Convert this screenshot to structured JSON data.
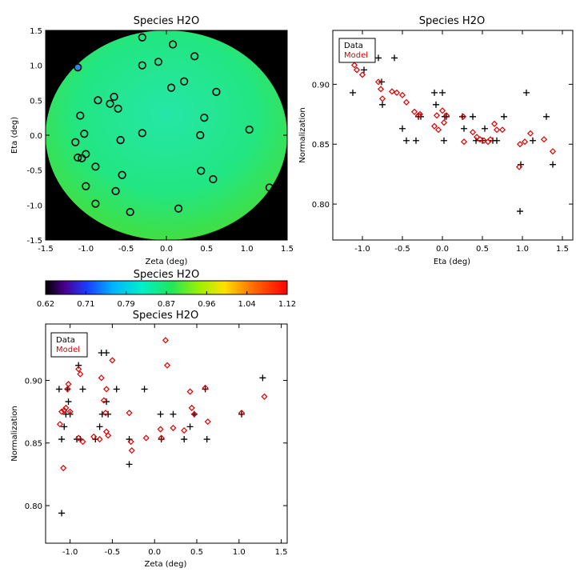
{
  "chart_data": [
    {
      "id": "map",
      "type": "heatmap",
      "title": "Species H2O",
      "xlabel": "Zeta (deg)",
      "ylabel": "Eta (deg)",
      "xlim": [
        -1.5,
        1.5
      ],
      "ylim": [
        -1.5,
        1.5
      ],
      "xticks": [
        "-1.5",
        "-1.0",
        "-0.5",
        "0.0",
        "0.5",
        "1.0",
        "1.5"
      ],
      "yticks": [
        "-1.5",
        "-1.0",
        "-0.5",
        "0.0",
        "0.5",
        "1.0",
        "1.5"
      ],
      "background_color": "#000000",
      "points": [
        {
          "x": -0.3,
          "y": 1.4
        },
        {
          "x": 0.08,
          "y": 1.3
        },
        {
          "x": -0.1,
          "y": 1.05
        },
        {
          "x": -0.3,
          "y": 1.0
        },
        {
          "x": 0.35,
          "y": 1.13
        },
        {
          "x": -1.1,
          "y": 0.97
        },
        {
          "x": 0.06,
          "y": 0.68
        },
        {
          "x": 0.22,
          "y": 0.77
        },
        {
          "x": 0.62,
          "y": 0.62
        },
        {
          "x": -0.65,
          "y": 0.55
        },
        {
          "x": -0.7,
          "y": 0.45
        },
        {
          "x": -0.85,
          "y": 0.5
        },
        {
          "x": -0.6,
          "y": 0.38
        },
        {
          "x": -1.07,
          "y": 0.28
        },
        {
          "x": 0.47,
          "y": 0.25
        },
        {
          "x": -1.02,
          "y": 0.02
        },
        {
          "x": -0.3,
          "y": 0.03
        },
        {
          "x": 0.42,
          "y": 0.0
        },
        {
          "x": 1.03,
          "y": 0.08
        },
        {
          "x": -1.13,
          "y": -0.1
        },
        {
          "x": -0.57,
          "y": -0.07
        },
        {
          "x": -1.0,
          "y": -0.27
        },
        {
          "x": -1.1,
          "y": -0.32
        },
        {
          "x": -1.05,
          "y": -0.33
        },
        {
          "x": -0.88,
          "y": -0.45
        },
        {
          "x": -0.55,
          "y": -0.57
        },
        {
          "x": 0.43,
          "y": -0.51
        },
        {
          "x": 0.58,
          "y": -0.63
        },
        {
          "x": -1.0,
          "y": -0.73
        },
        {
          "x": -0.63,
          "y": -0.8
        },
        {
          "x": -0.88,
          "y": -0.98
        },
        {
          "x": -0.45,
          "y": -1.1
        },
        {
          "x": 0.15,
          "y": -1.05
        },
        {
          "x": 1.28,
          "y": -0.75
        }
      ]
    },
    {
      "id": "colorbar",
      "type": "colorbar",
      "title": "Species H2O",
      "range": [
        0.62,
        1.12
      ],
      "ticks": [
        "0.62",
        "0.71",
        "0.79",
        "0.87",
        "0.96",
        "1.04",
        "1.12"
      ]
    },
    {
      "id": "eta",
      "type": "scatter",
      "title": "Species H2O",
      "xlabel": "Eta (deg)",
      "ylabel": "Normalization",
      "xlim": [
        -1.37,
        1.63
      ],
      "ylim": [
        0.77,
        0.945
      ],
      "xticks": [
        -1.0,
        -0.5,
        0.0,
        0.5,
        1.0,
        1.5
      ],
      "xtick_labels": [
        "-1.0",
        "-0.5",
        "0.0",
        "0.5",
        "1.0",
        "1.5"
      ],
      "yticks": [
        0.8,
        0.85,
        0.9
      ],
      "ytick_labels": [
        "0.80",
        "0.85",
        "0.90"
      ],
      "legend": {
        "position": "top-left",
        "entries": [
          "Data",
          "Model"
        ]
      },
      "series": [
        {
          "name": "Data",
          "color": "#000000",
          "marker": "plus",
          "points": [
            [
              -1.12,
              0.893
            ],
            [
              -1.05,
              0.932
            ],
            [
              -0.98,
              0.912
            ],
            [
              -0.8,
              0.922
            ],
            [
              -0.76,
              0.902
            ],
            [
              -0.75,
              0.883
            ],
            [
              -0.6,
              0.922
            ],
            [
              -0.5,
              0.863
            ],
            [
              -0.45,
              0.853
            ],
            [
              -0.33,
              0.853
            ],
            [
              -0.3,
              0.873
            ],
            [
              -0.27,
              0.873
            ],
            [
              -0.1,
              0.893
            ],
            [
              -0.08,
              0.883
            ],
            [
              0.0,
              0.893
            ],
            [
              0.02,
              0.853
            ],
            [
              0.03,
              0.873
            ],
            [
              0.05,
              0.873
            ],
            [
              0.25,
              0.873
            ],
            [
              0.27,
              0.863
            ],
            [
              0.38,
              0.873
            ],
            [
              0.42,
              0.853
            ],
            [
              0.5,
              0.853
            ],
            [
              0.53,
              0.863
            ],
            [
              0.63,
              0.853
            ],
            [
              0.68,
              0.853
            ],
            [
              0.77,
              0.873
            ],
            [
              0.97,
              0.794
            ],
            [
              0.98,
              0.833
            ],
            [
              1.05,
              0.893
            ],
            [
              1.13,
              0.853
            ],
            [
              1.3,
              0.873
            ],
            [
              1.38,
              0.833
            ]
          ]
        },
        {
          "name": "Model",
          "color": "#dd0000",
          "marker": "diamond",
          "points": [
            [
              -1.1,
              0.916
            ],
            [
              -1.07,
              0.912
            ],
            [
              -1.0,
              0.908
            ],
            [
              -0.8,
              0.902
            ],
            [
              -0.77,
              0.896
            ],
            [
              -0.75,
              0.888
            ],
            [
              -0.63,
              0.894
            ],
            [
              -0.57,
              0.893
            ],
            [
              -0.5,
              0.891
            ],
            [
              -0.45,
              0.885
            ],
            [
              -0.35,
              0.877
            ],
            [
              -0.3,
              0.874
            ],
            [
              -0.28,
              0.875
            ],
            [
              -0.1,
              0.865
            ],
            [
              -0.07,
              0.874
            ],
            [
              -0.05,
              0.862
            ],
            [
              0.0,
              0.878
            ],
            [
              0.02,
              0.868
            ],
            [
              0.05,
              0.874
            ],
            [
              0.26,
              0.873
            ],
            [
              0.27,
              0.852
            ],
            [
              0.38,
              0.86
            ],
            [
              0.43,
              0.856
            ],
            [
              0.47,
              0.854
            ],
            [
              0.52,
              0.853
            ],
            [
              0.57,
              0.852
            ],
            [
              0.6,
              0.854
            ],
            [
              0.65,
              0.867
            ],
            [
              0.68,
              0.862
            ],
            [
              0.75,
              0.862
            ],
            [
              0.96,
              0.831
            ],
            [
              0.97,
              0.85
            ],
            [
              1.03,
              0.852
            ],
            [
              1.1,
              0.859
            ],
            [
              1.27,
              0.854
            ],
            [
              1.38,
              0.844
            ]
          ]
        }
      ]
    },
    {
      "id": "zeta",
      "type": "scatter",
      "title": "Species H2O",
      "xlabel": "Zeta (deg)",
      "ylabel": "Normalization",
      "xlim": [
        -1.29,
        1.57
      ],
      "ylim": [
        0.77,
        0.945
      ],
      "xticks": [
        -1.0,
        -0.5,
        0.0,
        0.5,
        1.0,
        1.5
      ],
      "xtick_labels": [
        "-1.0",
        "-0.5",
        "0.0",
        "0.5",
        "1.0",
        "1.5"
      ],
      "yticks": [
        0.8,
        0.85,
        0.9
      ],
      "ytick_labels": [
        "0.80",
        "0.85",
        "0.90"
      ],
      "legend": {
        "position": "top-left",
        "entries": [
          "Data",
          "Model"
        ]
      },
      "series": [
        {
          "name": "Data",
          "color": "#000000",
          "marker": "plus",
          "points": [
            [
              -1.13,
              0.893
            ],
            [
              -1.1,
              0.853
            ],
            [
              -1.07,
              0.863
            ],
            [
              -1.05,
              0.873
            ],
            [
              -1.03,
              0.893
            ],
            [
              -1.02,
              0.883
            ],
            [
              -1.0,
              0.873
            ],
            [
              -0.92,
              0.853
            ],
            [
              -0.9,
              0.912
            ],
            [
              -0.88,
              0.853
            ],
            [
              -0.85,
              0.893
            ],
            [
              -0.7,
              0.853
            ],
            [
              -0.65,
              0.863
            ],
            [
              -0.63,
              0.922
            ],
            [
              -0.62,
              0.873
            ],
            [
              -0.57,
              0.922
            ],
            [
              -0.57,
              0.883
            ],
            [
              -0.55,
              0.873
            ],
            [
              -0.45,
              0.893
            ],
            [
              -0.3,
              0.853
            ],
            [
              -0.3,
              0.833
            ],
            [
              -0.12,
              0.893
            ],
            [
              0.07,
              0.873
            ],
            [
              0.08,
              0.853
            ],
            [
              0.22,
              0.873
            ],
            [
              0.35,
              0.853
            ],
            [
              0.42,
              0.863
            ],
            [
              0.47,
              0.873
            ],
            [
              0.6,
              0.893
            ],
            [
              0.62,
              0.853
            ],
            [
              1.03,
              0.873
            ],
            [
              1.28,
              0.902
            ],
            [
              -1.1,
              0.794
            ]
          ]
        },
        {
          "name": "Model",
          "color": "#dd0000",
          "marker": "diamond",
          "points": [
            [
              -1.12,
              0.865
            ],
            [
              -1.1,
              0.875
            ],
            [
              -1.08,
              0.83
            ],
            [
              -1.07,
              0.876
            ],
            [
              -1.05,
              0.878
            ],
            [
              -1.03,
              0.893
            ],
            [
              -1.02,
              0.897
            ],
            [
              -1.0,
              0.875
            ],
            [
              -0.9,
              0.909
            ],
            [
              -0.88,
              0.905
            ],
            [
              -0.9,
              0.854
            ],
            [
              -0.85,
              0.851
            ],
            [
              -0.72,
              0.855
            ],
            [
              -0.65,
              0.853
            ],
            [
              -0.63,
              0.902
            ],
            [
              -0.6,
              0.884
            ],
            [
              -0.58,
              0.874
            ],
            [
              -0.57,
              0.859
            ],
            [
              -0.55,
              0.856
            ],
            [
              -0.57,
              0.893
            ],
            [
              -0.5,
              0.916
            ],
            [
              -0.3,
              0.874
            ],
            [
              -0.28,
              0.851
            ],
            [
              -0.27,
              0.844
            ],
            [
              -0.1,
              0.854
            ],
            [
              0.07,
              0.861
            ],
            [
              0.08,
              0.854
            ],
            [
              0.13,
              0.932
            ],
            [
              0.15,
              0.912
            ],
            [
              0.22,
              0.862
            ],
            [
              0.35,
              0.86
            ],
            [
              0.42,
              0.891
            ],
            [
              0.44,
              0.878
            ],
            [
              0.47,
              0.873
            ],
            [
              0.6,
              0.894
            ],
            [
              0.63,
              0.867
            ],
            [
              1.03,
              0.874
            ],
            [
              1.3,
              0.887
            ]
          ]
        }
      ]
    }
  ]
}
